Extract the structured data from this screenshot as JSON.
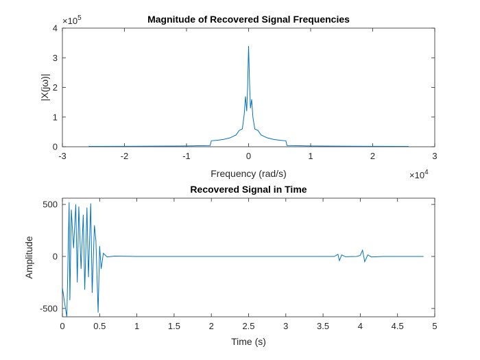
{
  "chart_data": [
    {
      "type": "line",
      "title": "Magnitude of Recovered Signal Frequencies",
      "xlabel": "Frequency (rad/s)",
      "ylabel": "|X(jω)|",
      "xlim": [
        -30000,
        30000
      ],
      "ylim": [
        0,
        400000
      ],
      "x_ticks": [
        -30000,
        -20000,
        -10000,
        0,
        10000,
        20000,
        30000
      ],
      "x_tick_labels": [
        "-3",
        "-2",
        "-1",
        "0",
        "1",
        "2",
        "3"
      ],
      "y_ticks": [
        0,
        100000,
        200000,
        300000,
        400000
      ],
      "y_tick_labels": [
        "0",
        "1",
        "2",
        "3",
        "4"
      ],
      "x_exponent_label": "×10",
      "x_exponent": "4",
      "y_exponent_label": "×10",
      "y_exponent": "5",
      "grid": false,
      "line_color": "#0072BD",
      "series": [
        {
          "x": [
            -25800,
            -20000,
            -10000,
            -8000,
            -6200,
            -6000,
            -5000,
            -4000,
            -3000,
            -2500,
            -2000,
            -1500,
            -1000,
            -700,
            -500,
            -300,
            -150,
            0,
            150,
            300,
            500,
            700,
            1000,
            1500,
            2000,
            2500,
            3000,
            4000,
            5000,
            6000,
            6200,
            8000,
            10000,
            20000,
            25800
          ],
          "y": [
            1200,
            1500,
            2500,
            3500,
            4000,
            20000,
            22000,
            25000,
            30000,
            35000,
            40000,
            55000,
            60000,
            110000,
            170000,
            120000,
            200000,
            340000,
            220000,
            130000,
            160000,
            100000,
            60000,
            55000,
            40000,
            35000,
            30000,
            25000,
            22000,
            20000,
            4000,
            3500,
            2500,
            1500,
            1200
          ]
        }
      ]
    },
    {
      "type": "line",
      "title": "Recovered Signal in Time",
      "xlabel": "Time (s)",
      "ylabel": "Amplitude",
      "xlim": [
        0,
        5
      ],
      "ylim": [
        -580,
        560
      ],
      "x_ticks": [
        0,
        0.5,
        1,
        1.5,
        2,
        2.5,
        3,
        3.5,
        4,
        4.5,
        5
      ],
      "x_tick_labels": [
        "0",
        "0.5",
        "1",
        "1.5",
        "2",
        "2.5",
        "3",
        "3.5",
        "4",
        "4.5",
        "5"
      ],
      "y_ticks": [
        -500,
        0,
        500
      ],
      "y_tick_labels": [
        "-500",
        "0",
        "500"
      ],
      "grid": false,
      "line_color": "#0072BD",
      "series": [
        {
          "x": [
            0,
            0.03,
            0.06,
            0.09,
            0.1,
            0.12,
            0.15,
            0.18,
            0.2,
            0.22,
            0.25,
            0.28,
            0.3,
            0.33,
            0.35,
            0.38,
            0.4,
            0.43,
            0.45,
            0.48,
            0.5,
            0.52,
            0.55,
            0.6,
            0.7,
            1,
            2,
            3,
            3.65,
            3.7,
            3.72,
            3.75,
            3.8,
            3.95,
            4.0,
            4.03,
            4.06,
            4.1,
            4.15,
            4.3,
            4.85
          ],
          "y": [
            -300,
            -450,
            -580,
            520,
            -420,
            450,
            80,
            500,
            -250,
            480,
            -120,
            400,
            -320,
            470,
            -200,
            510,
            -350,
            300,
            150,
            -540,
            100,
            -120,
            30,
            -5,
            3,
            0,
            0,
            0,
            0,
            20,
            -40,
            15,
            -3,
            0,
            10,
            60,
            -50,
            15,
            -5,
            0,
            0
          ]
        }
      ]
    }
  ]
}
